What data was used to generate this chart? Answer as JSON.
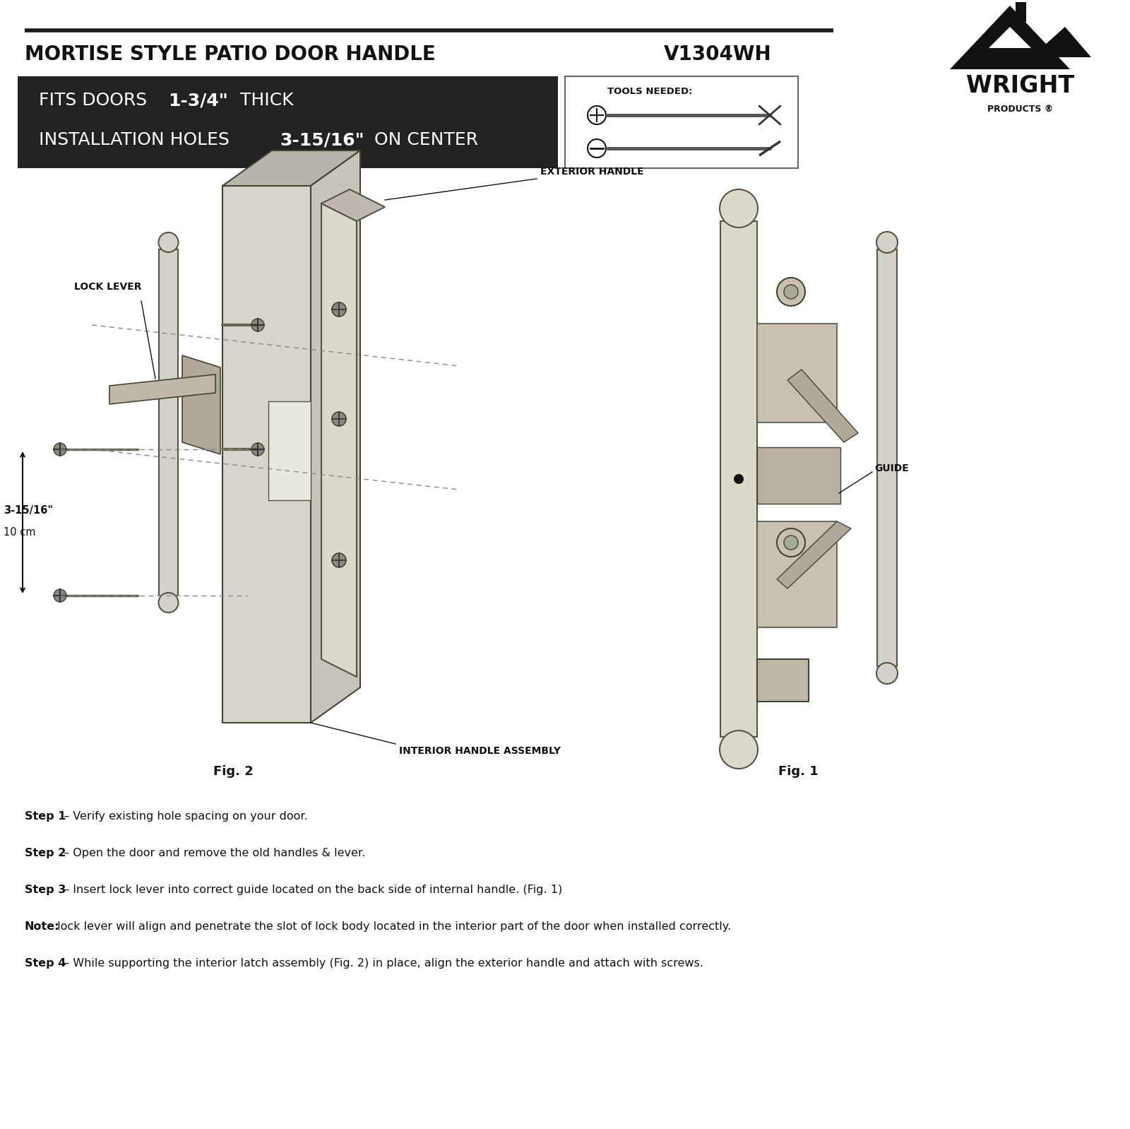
{
  "title": "MORTISE STYLE PATIO DOOR HANDLE",
  "model": "V1304WH",
  "bg_color": "#ffffff",
  "black_box_color": "#222222",
  "label_exterior": "EXTERIOR HANDLE",
  "label_lock_lever": "LOCK LEVER",
  "label_guide": "GUIDE",
  "label_interior": "INTERIOR HANDLE ASSEMBLY",
  "label_fig2": "Fig. 2",
  "label_fig1": "Fig. 1",
  "measurement_text1": "3-15/16\"",
  "measurement_text2": "10 cm",
  "tools_label": "TOOLS NEEDED:",
  "steps": [
    [
      "Step 1",
      " – Verify existing hole spacing on your door."
    ],
    [
      "Step 2",
      " – Open the door and remove the old handles & lever."
    ],
    [
      "Step 3",
      " – Insert lock lever into correct guide located on the back side of internal handle. (Fig. 1)"
    ],
    [
      "Note:",
      " lock lever will align and penetrate the slot of lock body located in the interior part of the door when installed correctly."
    ],
    [
      "Step 4",
      " – While supporting the interior latch assembly (Fig. 2) in place, align the exterior handle and attach with screws."
    ]
  ]
}
